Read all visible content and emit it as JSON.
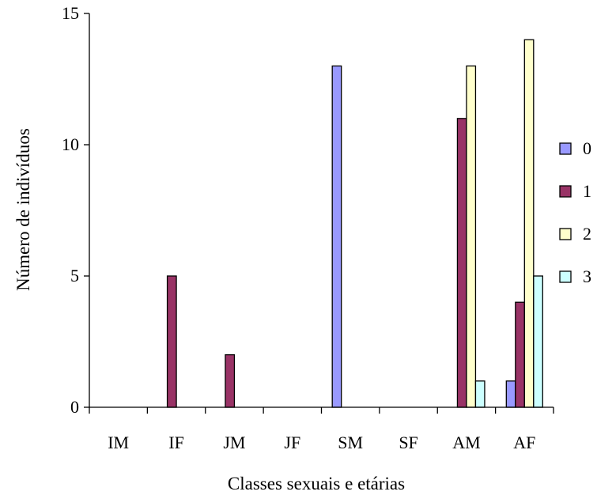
{
  "chart_data": {
    "type": "bar",
    "title": "",
    "xlabel": "Classes sexuais e etárias",
    "ylabel": "Número de indivíduos",
    "ylim": [
      0,
      15
    ],
    "yticks": [
      "0",
      "5",
      "10",
      "15"
    ],
    "grid": false,
    "legend_position": "right",
    "categories": [
      "IM",
      "IF",
      "JM",
      "JF",
      "SM",
      "SF",
      "AM",
      "AF"
    ],
    "series": [
      {
        "name": "0",
        "color": "#9999ff",
        "values": [
          0,
          0,
          0,
          0,
          13,
          0,
          0,
          1
        ]
      },
      {
        "name": "1",
        "color": "#993366",
        "values": [
          0,
          5,
          2,
          0,
          0,
          0,
          11,
          4
        ]
      },
      {
        "name": "2",
        "color": "#ffffcc",
        "values": [
          0,
          0,
          0,
          0,
          0,
          0,
          13,
          14
        ]
      },
      {
        "name": "3",
        "color": "#ccffff",
        "values": [
          0,
          0,
          0,
          0,
          0,
          0,
          1,
          5
        ]
      }
    ]
  }
}
